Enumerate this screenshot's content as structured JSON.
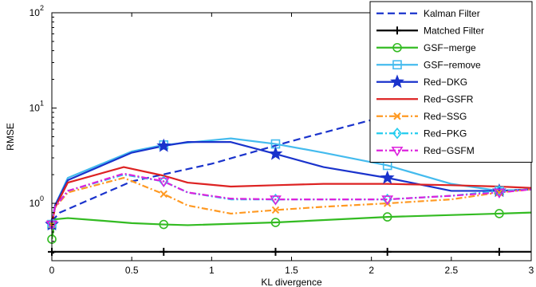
{
  "chart_data": {
    "type": "line",
    "xlabel": "KL divergence",
    "ylabel": "RMSE",
    "xlim": [
      0,
      3
    ],
    "ylim": [
      0.25,
      100
    ],
    "yscale": "log",
    "grid": false,
    "legend_position": "top-right",
    "x_ticks": [
      {
        "value": 0,
        "label": "0"
      },
      {
        "value": 0.5,
        "label": "0.5"
      },
      {
        "value": 1,
        "label": "1"
      },
      {
        "value": 1.5,
        "label": "1.5"
      },
      {
        "value": 2,
        "label": "2"
      },
      {
        "value": 2.5,
        "label": "2.5"
      },
      {
        "value": 3,
        "label": "3"
      }
    ],
    "y_ticks": [
      {
        "value": 1,
        "base": "10",
        "exp": "0"
      },
      {
        "value": 10,
        "base": "10",
        "exp": "1"
      },
      {
        "value": 100,
        "base": "10",
        "exp": "2"
      }
    ],
    "series": [
      {
        "name": "Kalman Filter",
        "color": "#1a33cc",
        "dash": "dashed",
        "marker": "none",
        "x": [
          0,
          0.05,
          0.5,
          1.0,
          1.5,
          2.0,
          2.5,
          3.0
        ],
        "y": [
          0.65,
          0.8,
          1.7,
          2.6,
          4.5,
          7.5,
          11.5,
          16
        ]
      },
      {
        "name": "Matched Filter",
        "color": "#000000",
        "dash": "solid",
        "marker": "plus",
        "x": [
          0,
          0.7,
          1.4,
          2.1,
          2.8,
          3.0
        ],
        "y": [
          0.31,
          0.31,
          0.31,
          0.31,
          0.31,
          0.31
        ]
      },
      {
        "name": "GSF−merge",
        "color": "#33bb22",
        "dash": "solid",
        "marker": "circle",
        "x": [
          0,
          0.02,
          0.1,
          0.3,
          0.5,
          0.7,
          0.85,
          1.4,
          2.1,
          2.8,
          3.0
        ],
        "y": [
          0.42,
          0.68,
          0.7,
          0.66,
          0.62,
          0.6,
          0.59,
          0.63,
          0.72,
          0.78,
          0.8
        ]
      },
      {
        "name": "GSF−remove",
        "color": "#44bbee",
        "dash": "solid",
        "marker": "square",
        "x": [
          0,
          0.02,
          0.1,
          0.5,
          0.7,
          1.12,
          1.4,
          1.7,
          2.1,
          2.5,
          2.8,
          3.0
        ],
        "y": [
          0.6,
          0.95,
          1.85,
          3.5,
          4.1,
          4.8,
          4.2,
          3.4,
          2.5,
          1.6,
          1.35,
          1.4
        ]
      },
      {
        "name": "Red−DKG",
        "color": "#1a33cc",
        "dash": "solid",
        "marker": "star",
        "x": [
          0,
          0.02,
          0.1,
          0.5,
          0.7,
          0.85,
          1.12,
          1.4,
          1.7,
          2.1,
          2.5,
          2.8,
          3.0
        ],
        "y": [
          0.6,
          0.95,
          1.75,
          3.4,
          4.0,
          4.4,
          4.4,
          3.3,
          2.4,
          1.85,
          1.35,
          1.35,
          1.4
        ]
      },
      {
        "name": "Red−GSFR",
        "color": "#dd2222",
        "dash": "solid",
        "marker": "none",
        "x": [
          0,
          0.02,
          0.1,
          0.45,
          0.7,
          0.85,
          1.12,
          1.4,
          1.7,
          2.1,
          2.5,
          2.8,
          3.0
        ],
        "y": [
          0.6,
          0.9,
          1.65,
          2.4,
          1.95,
          1.65,
          1.5,
          1.55,
          1.6,
          1.6,
          1.55,
          1.5,
          1.45
        ]
      },
      {
        "name": "Red−SSG",
        "color": "#ff9922",
        "dash": "dashdot",
        "marker": "x",
        "x": [
          0,
          0.02,
          0.1,
          0.45,
          0.7,
          0.85,
          1.12,
          1.4,
          1.7,
          2.1,
          2.5,
          2.8,
          3.0
        ],
        "y": [
          0.6,
          0.9,
          1.3,
          1.85,
          1.25,
          0.95,
          0.78,
          0.85,
          0.92,
          1.0,
          1.1,
          1.3,
          1.4
        ]
      },
      {
        "name": "Red−PKG",
        "color": "#22ccee",
        "dash": "dashdot",
        "marker": "diamond",
        "x": [
          0,
          0.02,
          0.1,
          0.45,
          0.7,
          0.85,
          1.12,
          1.4,
          1.7,
          2.1,
          2.5,
          2.8,
          3.0
        ],
        "y": [
          0.6,
          0.92,
          1.35,
          2.0,
          1.7,
          1.3,
          1.1,
          1.1,
          1.1,
          1.1,
          1.2,
          1.35,
          1.4
        ]
      },
      {
        "name": "Red−GSFM",
        "color": "#dd22dd",
        "dash": "dashdot",
        "marker": "triangle-down",
        "x": [
          0,
          0.02,
          0.1,
          0.45,
          0.7,
          0.85,
          1.12,
          1.4,
          1.7,
          2.1,
          2.5,
          2.8,
          3.0
        ],
        "y": [
          0.6,
          0.92,
          1.35,
          2.05,
          1.7,
          1.3,
          1.12,
          1.1,
          1.1,
          1.1,
          1.2,
          1.3,
          1.4
        ]
      }
    ]
  }
}
